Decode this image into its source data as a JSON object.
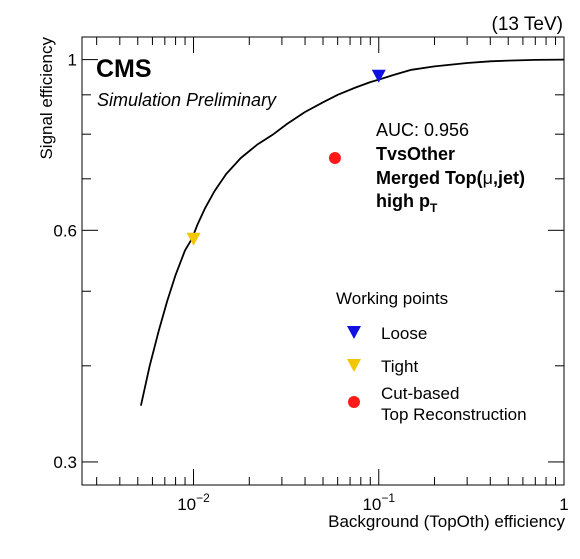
{
  "chart_data": {
    "type": "line",
    "energy_label": "(13 TeV)",
    "experiment": "CMS",
    "subtitle": "Simulation Preliminary",
    "xlabel": "Background (TopOth) efficiency",
    "ylabel": "Signal efficiency",
    "x_scale": "log",
    "y_scale": "log",
    "xlim": [
      0.0025,
      1.0
    ],
    "ylim": [
      0.28,
      1.07
    ],
    "x_ticks": [
      {
        "value": 0.01,
        "base": "10",
        "exp": "−2"
      },
      {
        "value": 0.1,
        "base": "10",
        "exp": "−1"
      },
      {
        "value": 1,
        "label": "1"
      }
    ],
    "y_ticks": [
      {
        "value": 0.3,
        "label": "0.3"
      },
      {
        "value": 0.6,
        "label": "0.6"
      },
      {
        "value": 1,
        "label": "1"
      }
    ],
    "info": {
      "auc": "AUC: 0.956",
      "tagger": "TvsOther",
      "category_pre": "Merged Top(",
      "category_mu": "μ",
      "category_post": ",jet)",
      "regime_pre": "high p",
      "regime_sub": "T"
    },
    "series": [
      {
        "x": [
          0.0052,
          0.0058,
          0.0065,
          0.0072,
          0.008,
          0.009,
          0.0098,
          0.0105,
          0.0115,
          0.013,
          0.015,
          0.018,
          0.022,
          0.027,
          0.032,
          0.04,
          0.05,
          0.06,
          0.075,
          0.09,
          0.1,
          0.12,
          0.15,
          0.2,
          0.3,
          0.4,
          0.5,
          0.7,
          1.0
        ],
        "y": [
          0.355,
          0.4,
          0.445,
          0.485,
          0.525,
          0.565,
          0.585,
          0.61,
          0.64,
          0.675,
          0.71,
          0.745,
          0.775,
          0.8,
          0.825,
          0.855,
          0.88,
          0.9,
          0.92,
          0.935,
          0.942,
          0.955,
          0.97,
          0.98,
          0.99,
          0.995,
          0.997,
          0.999,
          1.0
        ],
        "color": "#000000"
      }
    ],
    "points": [
      {
        "name": "Loose",
        "x": 0.1,
        "y": 0.953,
        "marker": "triangle-down",
        "color": "#1010e0"
      },
      {
        "name": "Tight",
        "x": 0.01,
        "y": 0.585,
        "marker": "triangle-down",
        "color": "#f2c600"
      },
      {
        "name": "Cut-based",
        "name2": "Top Reconstruction",
        "x": 0.058,
        "y": 0.745,
        "marker": "circle",
        "color": "#ff1a1a"
      }
    ],
    "legend": {
      "title": "Working points",
      "placement": "middle-right"
    },
    "grid": false
  }
}
